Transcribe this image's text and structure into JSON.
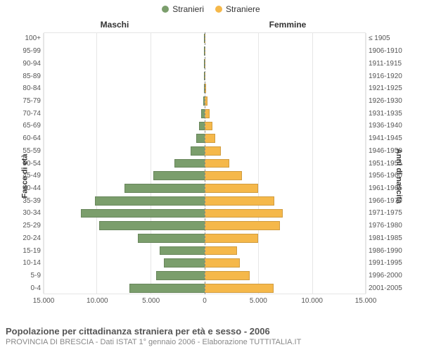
{
  "legend": {
    "male": {
      "label": "Stranieri",
      "color": "#7b9e6c"
    },
    "female": {
      "label": "Straniere",
      "color": "#f5b84a"
    }
  },
  "headers": {
    "male": "Maschi",
    "female": "Femmine"
  },
  "axis_titles": {
    "left": "Fasce di età",
    "right": "Anni di nascita"
  },
  "chart": {
    "type": "population-pyramid",
    "xmax": 15000,
    "x_ticks": [
      15000,
      10000,
      5000,
      0,
      5000,
      10000,
      15000
    ],
    "x_tick_labels": [
      "15.000",
      "10.000",
      "5.000",
      "0",
      "5.000",
      "10.000",
      "15.000"
    ],
    "grid_color": "#e6e6e6",
    "background_color": "#ffffff",
    "male_color": "#7b9e6c",
    "female_color": "#f5b84a",
    "bar_height_ratio": 0.72,
    "age_groups": [
      {
        "age": "100+",
        "birth": "≤ 1905",
        "m": 0,
        "f": 0
      },
      {
        "age": "95-99",
        "birth": "1906-1910",
        "m": 0,
        "f": 0
      },
      {
        "age": "90-94",
        "birth": "1911-1915",
        "m": 20,
        "f": 30
      },
      {
        "age": "85-89",
        "birth": "1916-1920",
        "m": 40,
        "f": 60
      },
      {
        "age": "80-84",
        "birth": "1921-1925",
        "m": 80,
        "f": 120
      },
      {
        "age": "75-79",
        "birth": "1926-1930",
        "m": 150,
        "f": 250
      },
      {
        "age": "70-74",
        "birth": "1931-1935",
        "m": 300,
        "f": 450
      },
      {
        "age": "65-69",
        "birth": "1936-1940",
        "m": 550,
        "f": 700
      },
      {
        "age": "60-64",
        "birth": "1941-1945",
        "m": 800,
        "f": 1000
      },
      {
        "age": "55-59",
        "birth": "1946-1950",
        "m": 1300,
        "f": 1500
      },
      {
        "age": "50-54",
        "birth": "1951-1955",
        "m": 2800,
        "f": 2300
      },
      {
        "age": "45-49",
        "birth": "1956-1960",
        "m": 4800,
        "f": 3500
      },
      {
        "age": "40-44",
        "birth": "1961-1965",
        "m": 7500,
        "f": 5000
      },
      {
        "age": "35-39",
        "birth": "1966-1970",
        "m": 10200,
        "f": 6500
      },
      {
        "age": "30-34",
        "birth": "1971-1975",
        "m": 11500,
        "f": 7300
      },
      {
        "age": "25-29",
        "birth": "1976-1980",
        "m": 9800,
        "f": 7000
      },
      {
        "age": "20-24",
        "birth": "1981-1985",
        "m": 6200,
        "f": 5000
      },
      {
        "age": "15-19",
        "birth": "1986-1990",
        "m": 4200,
        "f": 3000
      },
      {
        "age": "10-14",
        "birth": "1991-1995",
        "m": 3800,
        "f": 3300
      },
      {
        "age": "5-9",
        "birth": "1996-2000",
        "m": 4500,
        "f": 4200
      },
      {
        "age": "0-4",
        "birth": "2001-2005",
        "m": 7000,
        "f": 6400
      }
    ]
  },
  "caption": {
    "title": "Popolazione per cittadinanza straniera per età e sesso - 2006",
    "subtitle": "PROVINCIA DI BRESCIA - Dati ISTAT 1° gennaio 2006 - Elaborazione TUTTITALIA.IT"
  }
}
